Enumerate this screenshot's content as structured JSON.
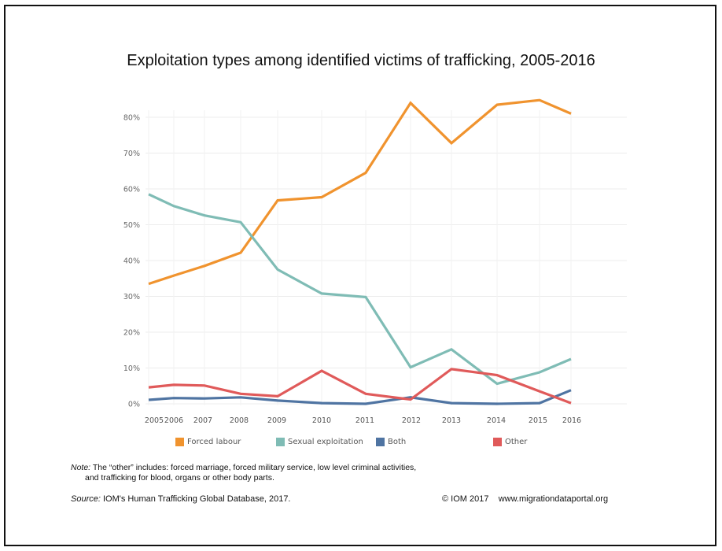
{
  "chart_data": {
    "type": "line",
    "title": "Exploitation types among identified victims of trafficking, 2005-2016",
    "xlabel": "",
    "ylabel": "",
    "categories": [
      "2005",
      "2006",
      "2007",
      "2008",
      "2009",
      "2010",
      "2011",
      "2012",
      "2013",
      "2014",
      "2015",
      "2016"
    ],
    "y_ticks": [
      "0%",
      "10%",
      "20%",
      "30%",
      "40%",
      "50%",
      "60%",
      "70%",
      "80%"
    ],
    "ylim": [
      0,
      85
    ],
    "grid": true,
    "legend_position": "bottom",
    "series": [
      {
        "name": "Forced labour",
        "color": "#f0932e",
        "values": [
          33.5,
          35.8,
          38.5,
          42.2,
          56.8,
          57.7,
          64.5,
          84.0,
          72.8,
          83.5,
          84.8,
          81.0
        ]
      },
      {
        "name": "Sexual exploitation",
        "color": "#7fbcb5",
        "values": [
          58.5,
          55.2,
          52.6,
          50.7,
          37.5,
          30.8,
          29.8,
          10.2,
          15.2,
          5.6,
          8.8,
          12.5
        ]
      },
      {
        "name": "Both",
        "color": "#4f74a2",
        "values": [
          1.1,
          1.6,
          1.5,
          1.8,
          0.9,
          0.2,
          0.0,
          1.8,
          0.2,
          0.0,
          0.2,
          3.8
        ]
      },
      {
        "name": "Other",
        "color": "#e05a5a",
        "values": [
          4.6,
          5.3,
          5.1,
          2.8,
          2.1,
          9.2,
          2.8,
          1.2,
          9.7,
          8.0,
          3.5,
          0.2
        ]
      }
    ]
  },
  "note": {
    "lead": "Note:",
    "line1": " The “other” includes: forced marriage, forced military service, low level criminal activities,",
    "line2": "and trafficking for blood, organs or other body parts."
  },
  "source": {
    "lead": "Source:",
    "text": " IOM's Human Trafficking Global Database, 2017."
  },
  "credit": "© IOM 2017    www.migrationdataportal.org"
}
